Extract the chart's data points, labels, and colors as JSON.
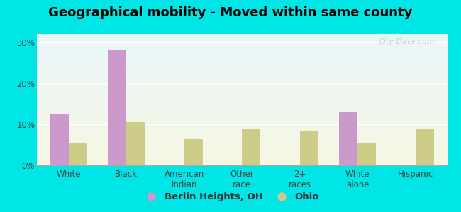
{
  "title": "Geographical mobility - Moved within same county",
  "categories": [
    "White",
    "Black",
    "American\nIndian",
    "Other\nrace",
    "2+\nraces",
    "White\nalone",
    "Hispanic"
  ],
  "berlin_values": [
    12.5,
    28.0,
    0.0,
    0.0,
    0.0,
    13.0,
    0.0
  ],
  "ohio_values": [
    5.5,
    10.5,
    6.5,
    9.0,
    8.5,
    5.5,
    9.0
  ],
  "berlin_color": "#cc99cc",
  "ohio_color": "#cccc88",
  "background_color": "#00e5e5",
  "ylim": [
    0,
    32
  ],
  "yticks": [
    0,
    10,
    20,
    30
  ],
  "yticklabels": [
    "0%",
    "10%",
    "20%",
    "30%"
  ],
  "legend_berlin": "Berlin Heights, OH",
  "legend_ohio": "Ohio",
  "watermark": "City-Data.com",
  "title_fontsize": 13,
  "tick_fontsize": 8.5,
  "legend_fontsize": 9.5
}
